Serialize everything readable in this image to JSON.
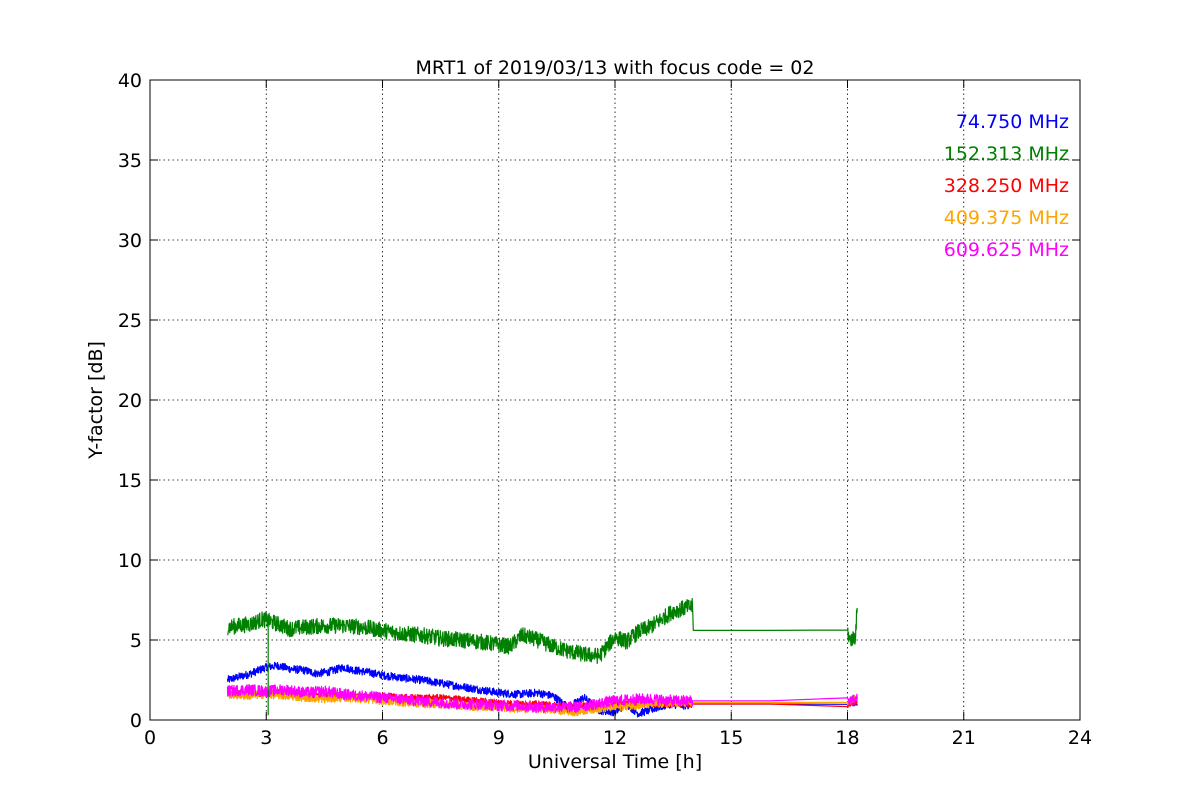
{
  "chart_data": {
    "type": "line",
    "title": "MRT1 of 2019/03/13 with focus code = 02",
    "xlabel": "Universal Time [h]",
    "ylabel": "Y-factor [dB]",
    "xlim": [
      0,
      24
    ],
    "ylim": [
      0,
      40
    ],
    "xticks": [
      0,
      3,
      6,
      9,
      12,
      15,
      18,
      21,
      24
    ],
    "yticks": [
      0,
      5,
      10,
      15,
      20,
      25,
      30,
      35,
      40
    ],
    "grid": true,
    "legend_placement": "top-right",
    "series": [
      {
        "name": "74.750 MHz",
        "color": "#0000ff",
        "points": [
          [
            2.0,
            2.5
          ],
          [
            2.3,
            2.7
          ],
          [
            2.6,
            2.9
          ],
          [
            3.0,
            3.3
          ],
          [
            3.3,
            3.4
          ],
          [
            3.6,
            3.2
          ],
          [
            4.0,
            3.1
          ],
          [
            4.3,
            2.9
          ],
          [
            4.6,
            3.0
          ],
          [
            5.0,
            3.3
          ],
          [
            5.3,
            3.1
          ],
          [
            5.6,
            3.0
          ],
          [
            6.0,
            2.8
          ],
          [
            6.3,
            2.7
          ],
          [
            6.6,
            2.6
          ],
          [
            7.0,
            2.5
          ],
          [
            7.5,
            2.3
          ],
          [
            8.0,
            2.1
          ],
          [
            8.5,
            1.9
          ],
          [
            9.0,
            1.7
          ],
          [
            9.5,
            1.6
          ],
          [
            10.0,
            1.7
          ],
          [
            10.4,
            1.5
          ],
          [
            10.8,
            0.8
          ],
          [
            11.2,
            1.4
          ],
          [
            11.6,
            0.6
          ],
          [
            12.0,
            0.5
          ],
          [
            12.3,
            1.0
          ],
          [
            12.6,
            0.4
          ],
          [
            13.0,
            0.7
          ],
          [
            13.4,
            1.0
          ],
          [
            13.8,
            0.9
          ],
          [
            14.0,
            1.0
          ],
          [
            18.0,
            1.0
          ],
          [
            18.05,
            1.0
          ],
          [
            18.25,
            1.0
          ]
        ],
        "noise": 0.25
      },
      {
        "name": "152.313 MHz",
        "color": "#008000",
        "points": [
          [
            2.0,
            5.8
          ],
          [
            2.3,
            5.9
          ],
          [
            2.6,
            6.0
          ],
          [
            2.9,
            6.3
          ],
          [
            3.3,
            6.0
          ],
          [
            3.6,
            5.7
          ],
          [
            4.0,
            5.8
          ],
          [
            4.5,
            5.9
          ],
          [
            5.0,
            5.9
          ],
          [
            5.5,
            5.8
          ],
          [
            6.0,
            5.6
          ],
          [
            6.5,
            5.4
          ],
          [
            7.0,
            5.3
          ],
          [
            7.5,
            5.1
          ],
          [
            8.0,
            5.0
          ],
          [
            8.5,
            4.9
          ],
          [
            9.0,
            4.7
          ],
          [
            9.3,
            4.6
          ],
          [
            9.6,
            5.3
          ],
          [
            10.0,
            5.0
          ],
          [
            10.4,
            4.6
          ],
          [
            10.8,
            4.3
          ],
          [
            11.2,
            4.1
          ],
          [
            11.6,
            4.0
          ],
          [
            12.0,
            5.2
          ],
          [
            12.3,
            4.9
          ],
          [
            12.6,
            5.5
          ],
          [
            12.9,
            5.8
          ],
          [
            13.2,
            6.3
          ],
          [
            13.5,
            6.8
          ],
          [
            13.8,
            7.0
          ],
          [
            14.0,
            7.1
          ],
          [
            14.02,
            5.6
          ],
          [
            18.0,
            5.6
          ],
          [
            18.05,
            5.0
          ],
          [
            18.2,
            5.2
          ],
          [
            18.25,
            7.0
          ]
        ],
        "noise": 0.5
      },
      {
        "name": "328.250 MHz",
        "color": "#ff0000",
        "points": [
          [
            2.0,
            1.7
          ],
          [
            2.5,
            1.6
          ],
          [
            3.0,
            1.7
          ],
          [
            3.5,
            1.7
          ],
          [
            4.0,
            1.5
          ],
          [
            4.5,
            1.5
          ],
          [
            5.0,
            1.6
          ],
          [
            5.5,
            1.5
          ],
          [
            6.0,
            1.5
          ],
          [
            6.5,
            1.4
          ],
          [
            7.0,
            1.4
          ],
          [
            7.5,
            1.4
          ],
          [
            8.0,
            1.3
          ],
          [
            8.5,
            1.2
          ],
          [
            9.0,
            1.1
          ],
          [
            9.5,
            1.0
          ],
          [
            10.0,
            1.0
          ],
          [
            10.5,
            0.9
          ],
          [
            11.0,
            0.9
          ],
          [
            11.5,
            0.9
          ],
          [
            12.0,
            1.0
          ],
          [
            12.5,
            1.0
          ],
          [
            13.0,
            1.0
          ],
          [
            13.5,
            1.0
          ],
          [
            14.0,
            1.0
          ],
          [
            18.0,
            1.0
          ],
          [
            18.25,
            1.1
          ]
        ],
        "noise": 0.2
      },
      {
        "name": "409.375 MHz",
        "color": "#ffa500",
        "points": [
          [
            2.0,
            1.6
          ],
          [
            2.5,
            1.5
          ],
          [
            3.0,
            1.6
          ],
          [
            3.5,
            1.5
          ],
          [
            4.0,
            1.4
          ],
          [
            4.5,
            1.3
          ],
          [
            5.0,
            1.4
          ],
          [
            5.5,
            1.3
          ],
          [
            6.0,
            1.2
          ],
          [
            6.5,
            1.1
          ],
          [
            7.0,
            1.0
          ],
          [
            7.5,
            1.0
          ],
          [
            8.0,
            0.9
          ],
          [
            8.5,
            0.8
          ],
          [
            9.0,
            0.8
          ],
          [
            9.5,
            0.7
          ],
          [
            10.0,
            0.7
          ],
          [
            10.5,
            0.6
          ],
          [
            11.0,
            0.5
          ],
          [
            11.5,
            0.7
          ],
          [
            12.0,
            0.8
          ],
          [
            12.5,
            0.9
          ],
          [
            13.0,
            1.0
          ],
          [
            13.5,
            1.0
          ],
          [
            14.0,
            1.1
          ],
          [
            18.0,
            1.1
          ],
          [
            18.25,
            1.4
          ]
        ],
        "noise": 0.25
      },
      {
        "name": "609.625 MHz",
        "color": "#ff00ff",
        "points": [
          [
            2.0,
            1.8
          ],
          [
            2.5,
            1.9
          ],
          [
            3.0,
            1.8
          ],
          [
            3.5,
            1.9
          ],
          [
            4.0,
            1.7
          ],
          [
            4.5,
            1.8
          ],
          [
            5.0,
            1.6
          ],
          [
            5.5,
            1.5
          ],
          [
            6.0,
            1.4
          ],
          [
            6.5,
            1.3
          ],
          [
            7.0,
            1.2
          ],
          [
            7.5,
            1.1
          ],
          [
            8.0,
            1.0
          ],
          [
            8.5,
            1.0
          ],
          [
            9.0,
            0.9
          ],
          [
            9.5,
            0.9
          ],
          [
            10.0,
            0.8
          ],
          [
            10.5,
            0.8
          ],
          [
            11.0,
            0.8
          ],
          [
            11.5,
            1.0
          ],
          [
            12.0,
            1.2
          ],
          [
            12.5,
            1.3
          ],
          [
            13.0,
            1.3
          ],
          [
            13.5,
            1.2
          ],
          [
            14.0,
            1.2
          ],
          [
            18.0,
            1.2
          ],
          [
            18.25,
            1.3
          ]
        ],
        "noise": 0.35
      }
    ]
  }
}
